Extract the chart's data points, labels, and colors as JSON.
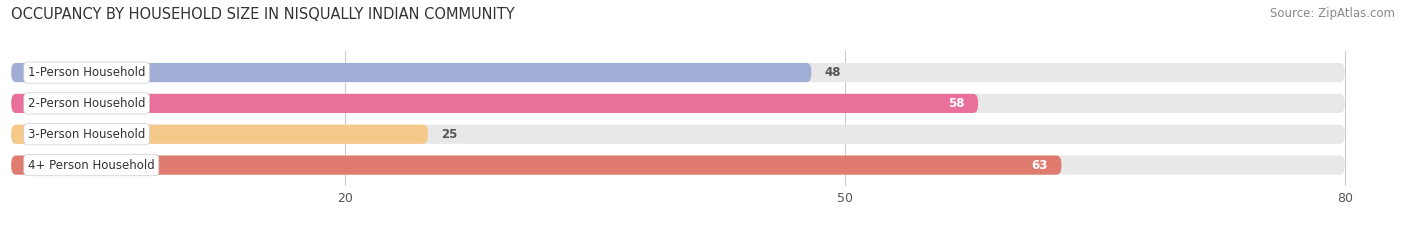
{
  "title": "OCCUPANCY BY HOUSEHOLD SIZE IN NISQUALLY INDIAN COMMUNITY",
  "source": "Source: ZipAtlas.com",
  "categories": [
    "1-Person Household",
    "2-Person Household",
    "3-Person Household",
    "4+ Person Household"
  ],
  "values": [
    48,
    58,
    25,
    63
  ],
  "bar_colors": [
    "#a0aed6",
    "#e8709a",
    "#f5c98a",
    "#e07b70"
  ],
  "background_color": "#ffffff",
  "bar_background_color": "#e8e8e8",
  "xlim": [
    0,
    83
  ],
  "data_max": 80,
  "xticks": [
    20,
    50,
    80
  ],
  "title_fontsize": 10.5,
  "source_fontsize": 8.5,
  "tick_fontsize": 9,
  "bar_label_fontsize": 8.5,
  "category_fontsize": 8.5,
  "label_inside_threshold": 50,
  "label_color_inside": "#ffffff",
  "label_color_outside": "#555555"
}
